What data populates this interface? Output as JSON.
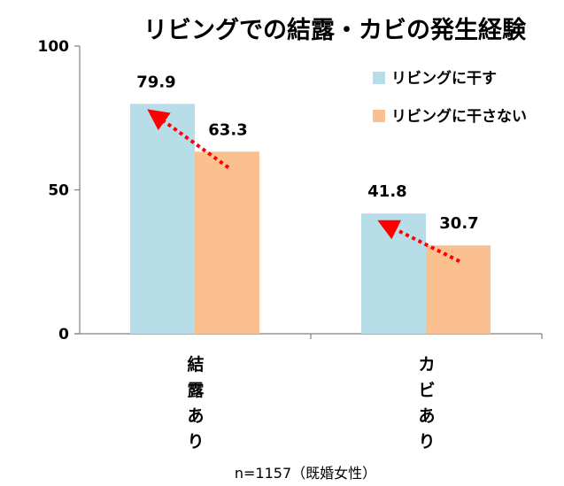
{
  "chart_data": {
    "type": "bar",
    "title": "リビングでの結露・カビの発生経験",
    "categories": [
      "結露あり",
      "カビあり"
    ],
    "series": [
      {
        "name": "リビングに干す",
        "values": [
          79.9,
          41.8
        ],
        "color": "#b7dde8",
        "value_labels": [
          "79.9",
          "41.8"
        ]
      },
      {
        "name": "リビングに干さない",
        "values": [
          63.3,
          30.7
        ],
        "color": "#fac090",
        "value_labels": [
          "63.3",
          "30.7"
        ]
      }
    ],
    "ylim": [
      0,
      100
    ],
    "yticks": [
      0,
      50,
      100
    ],
    "ytick_labels": [
      "0",
      "50",
      "100"
    ],
    "xlabel": "",
    "ylabel": "",
    "legend_position": "top-right",
    "arrow_color": "#ff0000",
    "note": "n=1157（既婚女性）"
  }
}
